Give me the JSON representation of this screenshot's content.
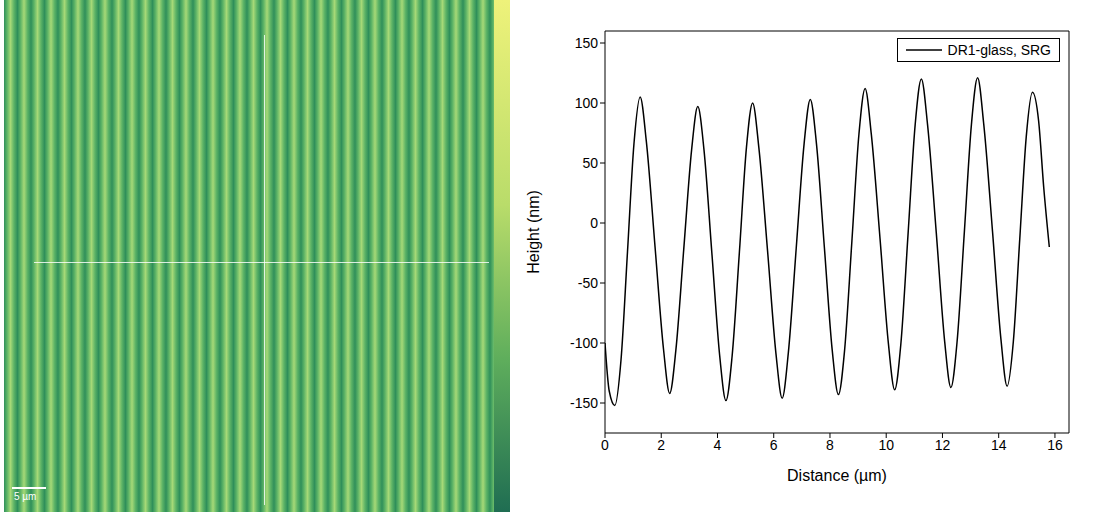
{
  "chart_data": {
    "type": "line",
    "x_label": "Distance (µm)",
    "y_label": "Height (nm)",
    "x": [
      0,
      0.15,
      0.35,
      0.57,
      0.8,
      1.03,
      1.25,
      1.47,
      1.78,
      2.08,
      2.3,
      2.52,
      2.8,
      3.08,
      3.3,
      3.52,
      3.8,
      4.08,
      4.3,
      4.52,
      4.78,
      5.03,
      5.25,
      5.47,
      5.78,
      6.08,
      6.3,
      6.52,
      6.8,
      7.08,
      7.3,
      7.52,
      7.8,
      8.08,
      8.3,
      8.52,
      8.78,
      9.03,
      9.25,
      9.47,
      9.78,
      10.08,
      10.3,
      10.52,
      10.78,
      11.03,
      11.25,
      11.47,
      11.78,
      12.08,
      12.3,
      12.52,
      12.78,
      13.03,
      13.25,
      13.47,
      13.78,
      14.08,
      14.3,
      14.52,
      14.75,
      14.98,
      15.2,
      15.42,
      15.6,
      15.8
    ],
    "series": [
      {
        "name": "DR1-glass, SRG",
        "color": "#000000",
        "values": [
          -100,
          -140,
          -152,
          -114,
          -24,
          66,
          105,
          68,
          -20,
          -105,
          -142,
          -106,
          -22,
          61,
          97,
          61,
          -25,
          -111,
          -148,
          -111,
          -24,
          63,
          100,
          63,
          -23,
          -109,
          -146,
          -108,
          -21,
          66,
          103,
          66,
          -20,
          -106,
          -143,
          -106,
          -15,
          74,
          112,
          74,
          -13,
          -101,
          -139,
          -101,
          -8,
          82,
          120,
          82,
          -8,
          -99,
          -137,
          -99,
          -7,
          82,
          121,
          82,
          -7,
          -97,
          -136,
          -99,
          -13,
          72,
          109,
          85,
          30,
          -20
        ]
      }
    ],
    "xlim": [
      0,
      16.5
    ],
    "ylim": [
      -175,
      160
    ],
    "xticks": [
      0,
      2,
      4,
      6,
      8,
      10,
      12,
      14,
      16
    ],
    "yticks": [
      -150,
      -100,
      -50,
      0,
      50,
      100,
      150
    ],
    "legend": "top-right"
  },
  "image": {
    "scale_bar": "5 µm"
  }
}
